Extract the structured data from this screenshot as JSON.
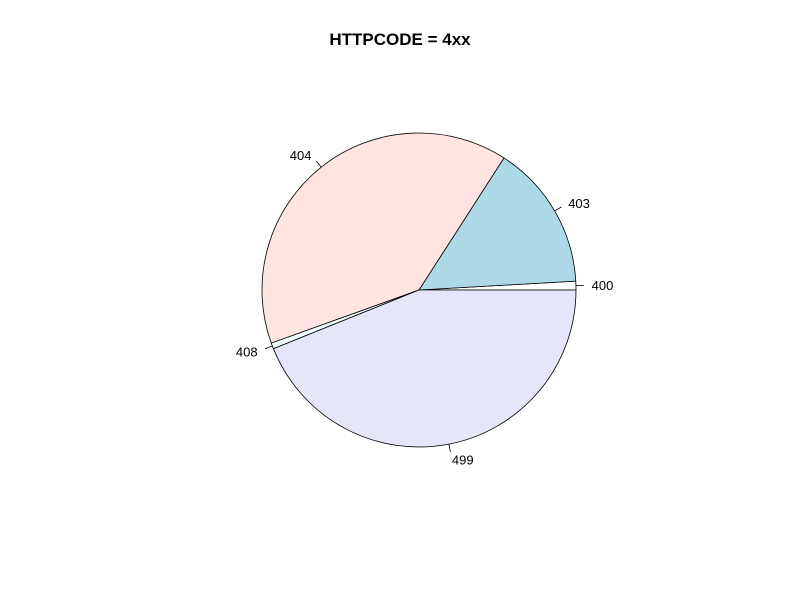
{
  "chart_data": {
    "type": "pie",
    "title": "HTTPCODE = 4xx",
    "labels": [
      "400",
      "403",
      "404",
      "408",
      "499"
    ],
    "values": [
      0.9,
      15.0,
      39.6,
      0.6,
      43.9
    ],
    "colors": [
      "#ffffff",
      "#add8e6",
      "#ffe4e1",
      "#f0ffff",
      "#e6e6fa"
    ],
    "start_angle_deg": 0,
    "direction": "counterclockwise"
  }
}
